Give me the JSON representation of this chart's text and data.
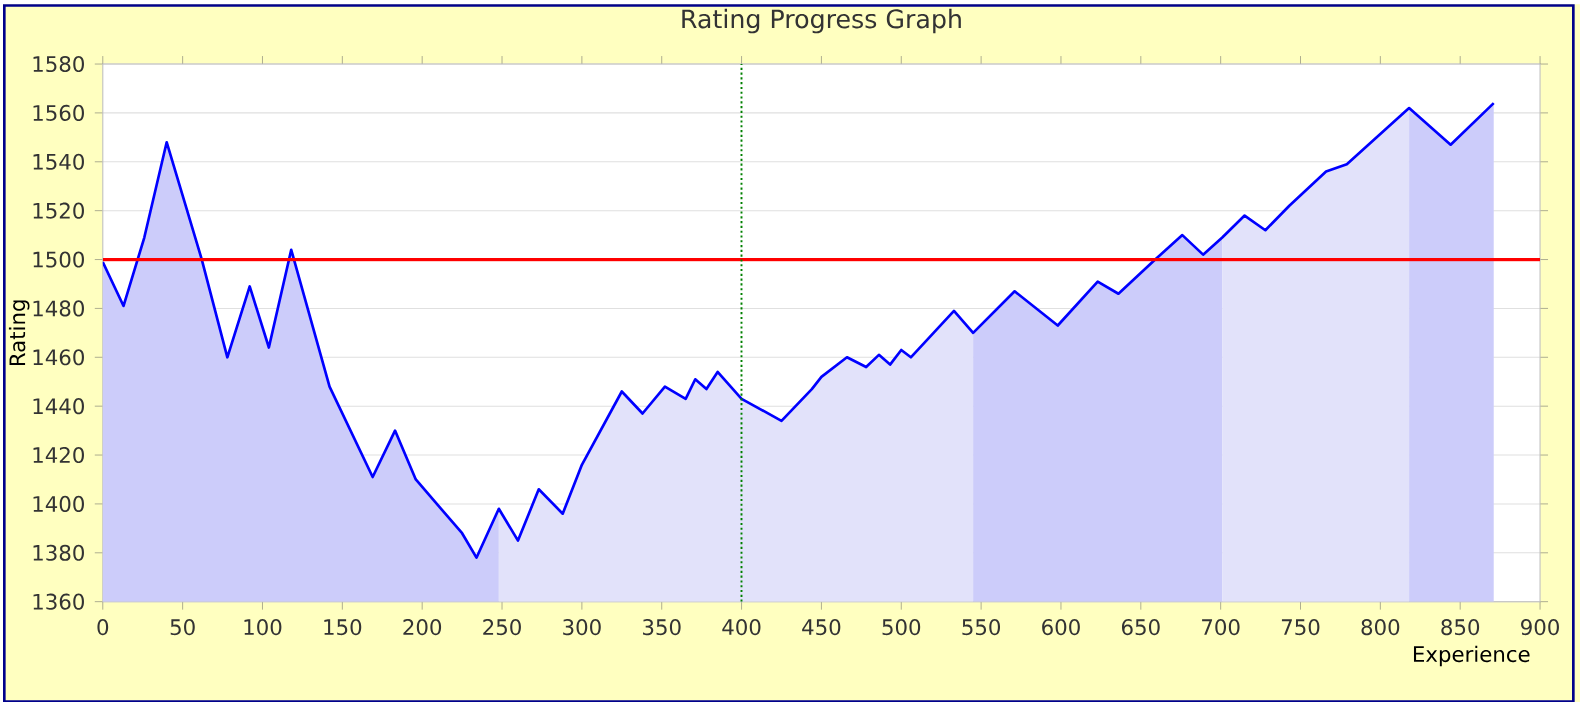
{
  "chart_data": {
    "type": "area",
    "title": "Rating Progress Graph",
    "xlabel": "Experience",
    "ylabel": "Rating",
    "xlim": [
      0,
      900
    ],
    "ylim": [
      1360,
      1580
    ],
    "xticks": [
      0,
      50,
      100,
      150,
      200,
      250,
      300,
      350,
      400,
      450,
      500,
      550,
      600,
      650,
      700,
      750,
      800,
      850,
      900
    ],
    "yticks": [
      1360,
      1380,
      1400,
      1420,
      1440,
      1460,
      1480,
      1500,
      1520,
      1540,
      1560,
      1580
    ],
    "grid": "y",
    "ref_lines": [
      {
        "axis": "y",
        "value": 1500,
        "color": "#ff0000",
        "line_style": "solid"
      },
      {
        "axis": "x",
        "value": 400,
        "color": "#008000",
        "line_style": "dotted"
      }
    ],
    "series": [
      {
        "color": "#ccccfa",
        "x": [
          0,
          13,
          26,
          40,
          62,
          78,
          92,
          104,
          118,
          142,
          169,
          183,
          196,
          225,
          234,
          248
        ],
        "values": [
          1499,
          1481,
          1509,
          1548,
          1500,
          1460,
          1489,
          1464,
          1504,
          1448,
          1411,
          1430,
          1410,
          1388,
          1378,
          1398
        ]
      },
      {
        "color": "#e2e2fa",
        "x": [
          248,
          260,
          273,
          288,
          300,
          325,
          338,
          352,
          365,
          371,
          378,
          385,
          400,
          425,
          444,
          450,
          466,
          478,
          486,
          493,
          500,
          506,
          533,
          545
        ],
        "values": [
          1398,
          1385,
          1406,
          1396,
          1416,
          1446,
          1437,
          1448,
          1443,
          1451,
          1447,
          1454,
          1443,
          1434,
          1447,
          1452,
          1460,
          1456,
          1461,
          1457,
          1463,
          1460,
          1479,
          1470
        ]
      },
      {
        "color": "#ccccfa",
        "x": [
          545,
          571,
          598,
          623,
          636,
          659,
          676,
          689,
          701
        ],
        "values": [
          1470,
          1487,
          1473,
          1491,
          1486,
          1500,
          1510,
          1502,
          1509
        ]
      },
      {
        "color": "#e2e2fa",
        "x": [
          701,
          715,
          728,
          743,
          766,
          779,
          818
        ],
        "values": [
          1509,
          1518,
          1512,
          1522,
          1536,
          1539,
          1562
        ]
      },
      {
        "color": "#ccccfa",
        "x": [
          818,
          844,
          871
        ],
        "values": [
          1562,
          1547,
          1564
        ]
      },
      {
        "type": "line",
        "color": "#0000ff",
        "line_style": "solid",
        "marker": "none",
        "x": [
          0,
          13,
          26,
          40,
          62,
          78,
          92,
          104,
          118,
          142,
          169,
          183,
          196,
          225,
          234,
          248,
          260,
          273,
          288,
          300,
          325,
          338,
          352,
          365,
          371,
          378,
          385,
          400,
          425,
          444,
          450,
          466,
          478,
          486,
          493,
          500,
          506,
          533,
          545,
          571,
          598,
          623,
          636,
          659,
          676,
          689,
          701,
          715,
          728,
          743,
          766,
          779,
          818,
          844,
          871
        ],
        "values": [
          1499,
          1481,
          1509,
          1548,
          1500,
          1460,
          1489,
          1464,
          1504,
          1448,
          1411,
          1430,
          1410,
          1388,
          1378,
          1398,
          1385,
          1406,
          1396,
          1416,
          1446,
          1437,
          1448,
          1443,
          1451,
          1447,
          1454,
          1443,
          1434,
          1447,
          1452,
          1460,
          1456,
          1461,
          1457,
          1463,
          1460,
          1479,
          1470,
          1487,
          1473,
          1491,
          1486,
          1500,
          1510,
          1502,
          1509,
          1518,
          1512,
          1522,
          1536,
          1539,
          1562,
          1547,
          1564
        ]
      }
    ]
  }
}
